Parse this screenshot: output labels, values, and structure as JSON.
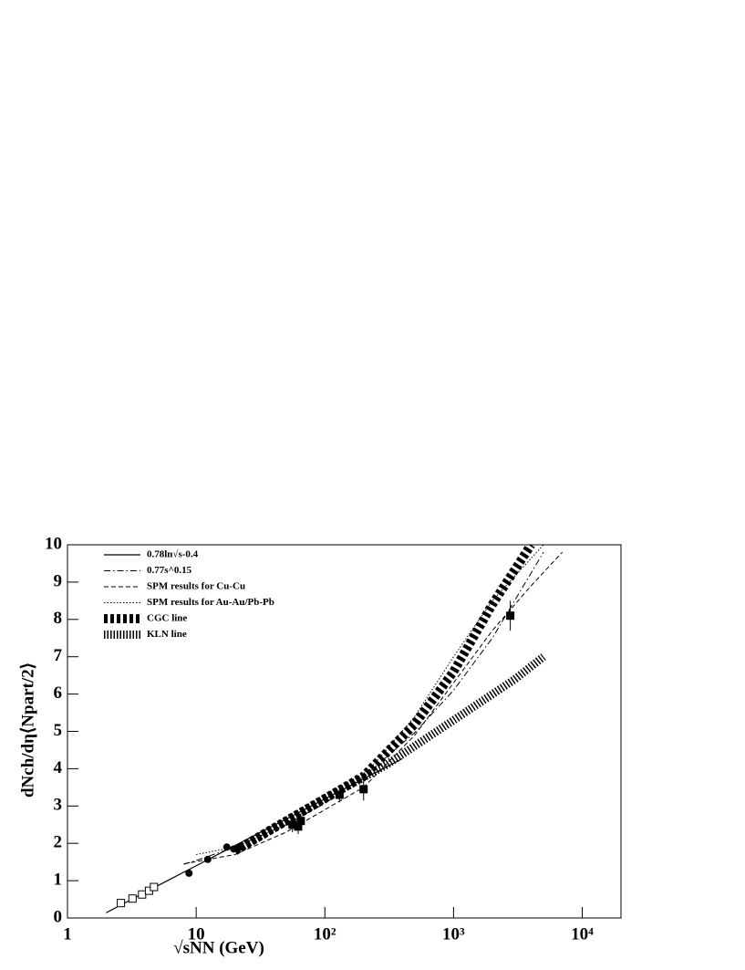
{
  "chart_data": {
    "type": "line",
    "xlabel": "√sNN (GeV)",
    "ylabel": "dNch/dη⟨Npart/2⟩",
    "xscale": "log",
    "xlim": [
      1,
      20000
    ],
    "ylim": [
      0,
      10
    ],
    "xticks": [
      1,
      10,
      {
        "value": 100,
        "label": "10²"
      },
      {
        "value": 1000,
        "label": "10³"
      },
      {
        "value": 10000,
        "label": "10⁴"
      }
    ],
    "yticks": [
      0,
      1,
      2,
      3,
      4,
      5,
      6,
      7,
      8,
      9,
      10
    ],
    "legend": "upper left",
    "series": [
      {
        "name": "0.78ln√s-0.4",
        "color": "#000000",
        "style": "solid",
        "x": [
          2,
          5,
          10,
          20,
          50,
          100,
          200,
          400
        ],
        "values": [
          0.14,
          0.86,
          1.4,
          1.94,
          2.65,
          3.19,
          3.73,
          4.27
        ]
      },
      {
        "name": "0.77s^0.15",
        "color": "#000000",
        "style": "dashdot",
        "x": [
          8,
          10,
          20,
          50,
          100,
          200,
          500,
          1000,
          2000,
          5000
        ],
        "values": [
          1.44,
          1.54,
          1.9,
          2.5,
          3.07,
          3.78,
          4.97,
          6.1,
          7.5,
          9.8
        ]
      },
      {
        "name": "SPM results for Cu-Cu",
        "color": "#000000",
        "style": "dash",
        "x": [
          8,
          20,
          50,
          100,
          200,
          500,
          1000,
          2000,
          4000,
          7000
        ],
        "values": [
          1.45,
          1.7,
          2.3,
          2.9,
          3.5,
          4.9,
          6.3,
          7.7,
          8.9,
          9.8
        ]
      },
      {
        "name": "SPM results for Au-Au/Pb-Pb",
        "color": "#000000",
        "style": "dot",
        "x": [
          10,
          20,
          50,
          100,
          200,
          500,
          1000,
          2000,
          5000
        ],
        "values": [
          1.7,
          1.9,
          2.5,
          3.1,
          3.8,
          5.4,
          7.0,
          8.5,
          10
        ]
      },
      {
        "name": "CGC line",
        "color": "#000000",
        "style": "cgc",
        "x": [
          20,
          50,
          100,
          200,
          500,
          1000,
          2000,
          4000
        ],
        "values": [
          1.8,
          2.6,
          3.2,
          3.8,
          5.2,
          6.6,
          8.4,
          10
        ]
      },
      {
        "name": "KLN line",
        "color": "#000000",
        "style": "kln",
        "x": [
          20,
          50,
          100,
          300,
          1000,
          3000,
          5000
        ],
        "values": [
          1.8,
          2.6,
          3.2,
          4.1,
          5.3,
          6.4,
          7.0
        ]
      },
      {
        "color": "#000000",
        "marker": "open-square",
        "x": [
          2.6,
          3.2,
          3.8,
          4.3,
          4.7
        ],
        "values": [
          0.4,
          0.52,
          0.63,
          0.73,
          0.83
        ]
      },
      {
        "color": "#000000",
        "marker": "circle",
        "x": [
          8.8,
          12.3,
          17.3,
          19.6,
          22
        ],
        "values": [
          1.2,
          1.57,
          1.9,
          1.85,
          1.9
        ],
        "errors": [
          0.08,
          0.07,
          0.08,
          0.08,
          0.08
        ]
      },
      {
        "color": "#000000",
        "marker": "square",
        "x": [
          56,
          62,
          65,
          130,
          200,
          2760
        ],
        "values": [
          2.5,
          2.45,
          2.6,
          3.3,
          3.45,
          8.1
        ],
        "errors": [
          0.2,
          0.2,
          0.2,
          0.2,
          0.3,
          0.4
        ]
      }
    ]
  }
}
